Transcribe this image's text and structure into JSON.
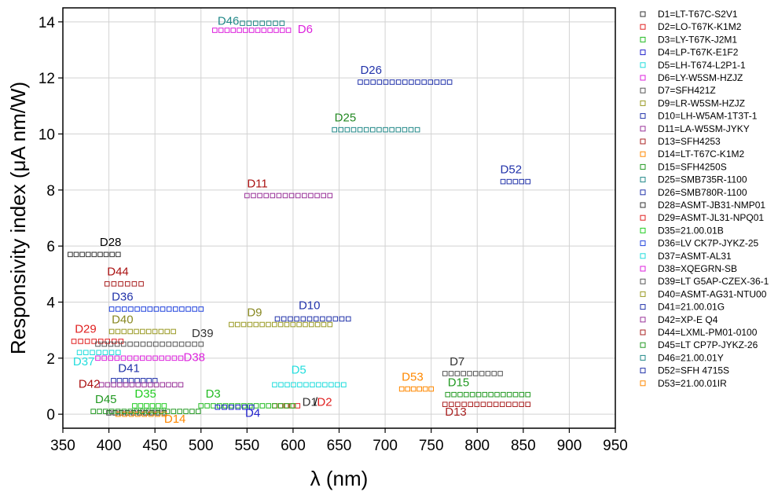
{
  "chart_data": {
    "type": "scatter",
    "title": "",
    "xlabel": "λ (nm)",
    "ylabel": "Responsivity index (μA nm/W)",
    "xlim": [
      350,
      950
    ],
    "ylim": [
      -0.5,
      14.5
    ],
    "x_ticks": [
      "350",
      "400",
      "450",
      "500",
      "550",
      "600",
      "650",
      "700",
      "750",
      "800",
      "850",
      "900",
      "950"
    ],
    "y_ticks": [
      "0",
      "2",
      "4",
      "6",
      "8",
      "10",
      "12",
      "14"
    ],
    "grid": true,
    "legend_position": "right",
    "series": [
      {
        "name": "D1=LT-T67C-S2V1",
        "color": "#333333",
        "x0": 400,
        "x1": 460,
        "y": 0.05,
        "annotation": "D1",
        "ann_x": 610,
        "ann_y": 0.3,
        "ann_color": "#333333"
      },
      {
        "name": "D2=LO-T67K-K1M2",
        "color": "#e02020",
        "x0": 580,
        "x1": 605,
        "y": 0.3,
        "annotation": "D2",
        "ann_x": 626,
        "ann_y": 0.3,
        "ann_color": "#e02020"
      },
      {
        "name": "D3=LY-T67K-J2M1",
        "color": "#22bb22",
        "x0": 500,
        "x1": 600,
        "y": 0.3,
        "annotation": "D3",
        "ann_x": 505,
        "ann_y": 0.6,
        "ann_color": "#22bb22"
      },
      {
        "name": "D4=LP-T67K-E1F2",
        "color": "#2222cc",
        "x0": 518,
        "x1": 555,
        "y": 0.25,
        "annotation": "D4",
        "ann_x": 548,
        "ann_y": -0.1,
        "ann_color": "#2222cc"
      },
      {
        "name": "D5=LH-T674-L2P1-1",
        "color": "#22dddd",
        "x0": 580,
        "x1": 655,
        "y": 1.05,
        "annotation": "D5",
        "ann_x": 598,
        "ann_y": 1.45,
        "ann_color": "#22dddd"
      },
      {
        "name": "D6=LY-W5SM-HZJZ",
        "color": "#dd22dd",
        "x0": 515,
        "x1": 595,
        "y": 13.7,
        "annotation": "D6",
        "ann_x": 605,
        "ann_y": 13.6,
        "ann_color": "#dd22dd"
      },
      {
        "name": "D7=SFH421Z",
        "color": "#555555",
        "x0": 765,
        "x1": 825,
        "y": 1.45,
        "annotation": "D7",
        "ann_x": 770,
        "ann_y": 1.75,
        "ann_color": "#333333"
      },
      {
        "name": "D9=LR-W5SM-HZJZ",
        "color": "#999922",
        "x0": 533,
        "x1": 640,
        "y": 3.2,
        "annotation": "D9",
        "ann_x": 550,
        "ann_y": 3.5,
        "ann_color": "#888822"
      },
      {
        "name": "D10=LH-W5AM-1T3T-1",
        "color": "#2233aa",
        "x0": 583,
        "x1": 660,
        "y": 3.4,
        "annotation": "D10",
        "ann_x": 606,
        "ann_y": 3.75,
        "ann_color": "#2233aa"
      },
      {
        "name": "D11=LA-W5SM-JYKY",
        "color": "#993399",
        "x0": 550,
        "x1": 640,
        "y": 7.8,
        "annotation": "D11",
        "ann_x": 550,
        "ann_y": 8.1,
        "ann_color": "#aa1111"
      },
      {
        "name": "D13=SFH4253",
        "color": "#aa2222",
        "x0": 765,
        "x1": 855,
        "y": 0.35,
        "annotation": "D13",
        "ann_x": 765,
        "ann_y": -0.05,
        "ann_color": "#aa2222"
      },
      {
        "name": "D14=LT-T67C-K1M2",
        "color": "#ff8800",
        "x0": 410,
        "x1": 460,
        "y": 0.0,
        "annotation": "D14",
        "ann_x": 460,
        "ann_y": -0.3,
        "ann_color": "#ff8800"
      },
      {
        "name": "D15=SFH4250S",
        "color": "#229922",
        "x0": 768,
        "x1": 855,
        "y": 0.7,
        "annotation": "D15",
        "ann_x": 768,
        "ann_y": 1.0,
        "ann_color": "#229922"
      },
      {
        "name": "D25=SMB735R-1100",
        "color": "#228888",
        "x0": 645,
        "x1": 735,
        "y": 10.15,
        "annotation": "D25",
        "ann_x": 645,
        "ann_y": 10.45,
        "ann_color": "#228822"
      },
      {
        "name": "D26=SMB780R-1100",
        "color": "#2233aa",
        "x0": 673,
        "x1": 770,
        "y": 11.85,
        "annotation": "D26",
        "ann_x": 673,
        "ann_y": 12.15,
        "ann_color": "#2233aa"
      },
      {
        "name": "D28=ASMT-JB31-NMP01",
        "color": "#333333",
        "x0": 358,
        "x1": 410,
        "y": 5.7,
        "annotation": "D28",
        "ann_x": 390,
        "ann_y": 6.0,
        "ann_color": "#000000"
      },
      {
        "name": "D29=ASMT-JL31-NPQ01",
        "color": "#e02020",
        "x0": 362,
        "x1": 413,
        "y": 2.6,
        "annotation": "D29",
        "ann_x": 363,
        "ann_y": 2.9,
        "ann_color": "#e02020"
      },
      {
        "name": "D35=21.00.01B",
        "color": "#22cc22",
        "x0": 428,
        "x1": 460,
        "y": 0.3,
        "annotation": "D35",
        "ann_x": 428,
        "ann_y": 0.6,
        "ann_color": "#22cc22"
      },
      {
        "name": "D36=LV CK7P-JYKZ-25",
        "color": "#2244dd",
        "x0": 403,
        "x1": 500,
        "y": 3.75,
        "annotation": "D36",
        "ann_x": 403,
        "ann_y": 4.05,
        "ann_color": "#2233aa"
      },
      {
        "name": "D37=ASMT-AL31",
        "color": "#22dddd",
        "x0": 368,
        "x1": 410,
        "y": 2.2,
        "annotation": "D37",
        "ann_x": 361,
        "ann_y": 1.75,
        "ann_color": "#22dddd"
      },
      {
        "name": "D38=XQEGRN-SB",
        "color": "#dd22dd",
        "x0": 388,
        "x1": 478,
        "y": 2.0,
        "annotation": "D38",
        "ann_x": 481,
        "ann_y": 1.9,
        "ann_color": "#dd22dd"
      },
      {
        "name": "D39=LT G5AP-CZEX-36-1",
        "color": "#555555",
        "x0": 388,
        "x1": 500,
        "y": 2.5,
        "annotation": "D39",
        "ann_x": 490,
        "ann_y": 2.75,
        "ann_color": "#333333"
      },
      {
        "name": "D40=ASMT-AG31-NTU00",
        "color": "#999922",
        "x0": 403,
        "x1": 470,
        "y": 2.95,
        "annotation": "D40",
        "ann_x": 403,
        "ann_y": 3.25,
        "ann_color": "#888822"
      },
      {
        "name": "D41=21.00.01G",
        "color": "#2233aa",
        "x0": 405,
        "x1": 450,
        "y": 1.2,
        "annotation": "D41",
        "ann_x": 410,
        "ann_y": 1.5,
        "ann_color": "#2233aa"
      },
      {
        "name": "D42=XP-E Q4",
        "color": "#993399",
        "x0": 392,
        "x1": 478,
        "y": 1.05,
        "annotation": "D42",
        "ann_x": 367,
        "ann_y": 0.95,
        "ann_color": "#aa1111"
      },
      {
        "name": "D44=LXML-PM01-0100",
        "color": "#aa2222",
        "x0": 398,
        "x1": 435,
        "y": 4.65,
        "annotation": "D44",
        "ann_x": 398,
        "ann_y": 4.95,
        "ann_color": "#aa1111"
      },
      {
        "name": "D45=LT CP7P-JYKZ-26",
        "color": "#229922",
        "x0": 383,
        "x1": 497,
        "y": 0.1,
        "annotation": "D45",
        "ann_x": 385,
        "ann_y": 0.4,
        "ann_color": "#229922"
      },
      {
        "name": "D46=21.00.01Y",
        "color": "#228888",
        "x0": 545,
        "x1": 588,
        "y": 13.95,
        "annotation": "D46",
        "ann_x": 518,
        "ann_y": 13.9,
        "ann_color": "#228888"
      },
      {
        "name": "D52=SFH 4715S",
        "color": "#2233aa",
        "x0": 828,
        "x1": 855,
        "y": 8.3,
        "annotation": "D52",
        "ann_x": 825,
        "ann_y": 8.6,
        "ann_color": "#2233aa"
      },
      {
        "name": "D53=21.00.01IR",
        "color": "#ff8800",
        "x0": 718,
        "x1": 750,
        "y": 0.9,
        "annotation": "D53",
        "ann_x": 718,
        "ann_y": 1.2,
        "ann_color": "#ff8800"
      }
    ],
    "extra_annotations": [
      {
        "text": "/",
        "x": 623,
        "y": 0.3,
        "color": "#000000"
      }
    ]
  }
}
